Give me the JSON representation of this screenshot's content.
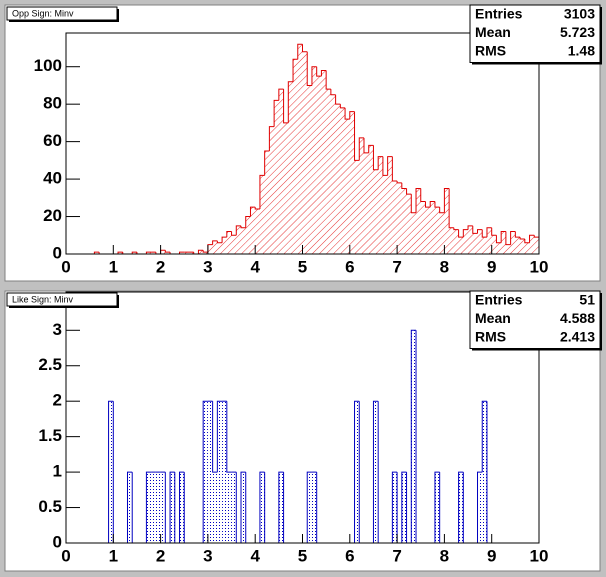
{
  "chart_data": [
    {
      "type": "histogram",
      "title": "Opp Sign: Minv",
      "color": "#e00000",
      "stats": [
        {
          "label": "Entries",
          "value": 3103
        },
        {
          "label": "Mean",
          "value": 5.723
        },
        {
          "label": "RMS",
          "value": 1.48
        }
      ],
      "bins": [
        0,
        0.1,
        0.2,
        0.3,
        0.4,
        0.5,
        0.6,
        0.7,
        0.8,
        0.9,
        1,
        1.1,
        1.2,
        1.3,
        1.4,
        1.5,
        1.6,
        1.7,
        1.8,
        1.9,
        2,
        2.1,
        2.2,
        2.3,
        2.4,
        2.5,
        2.6,
        2.7,
        2.8,
        2.9,
        3,
        3.1,
        3.2,
        3.3,
        3.4,
        3.5,
        3.6,
        3.7,
        3.8,
        3.9,
        4,
        4.1,
        4.2,
        4.3,
        4.4,
        4.5,
        4.6,
        4.7,
        4.8,
        4.9,
        5,
        5.1,
        5.2,
        5.3,
        5.4,
        5.5,
        5.6,
        5.7,
        5.8,
        5.9,
        6,
        6.1,
        6.2,
        6.3,
        6.4,
        6.5,
        6.6,
        6.7,
        6.8,
        6.9,
        7,
        7.1,
        7.2,
        7.3,
        7.4,
        7.5,
        7.6,
        7.7,
        7.8,
        7.9,
        8,
        8.1,
        8.2,
        8.3,
        8.4,
        8.5,
        8.6,
        8.7,
        8.8,
        8.9,
        9,
        9.1,
        9.2,
        9.3,
        9.4,
        9.5,
        9.6,
        9.7,
        9.8,
        9.9,
        10
      ],
      "values": [
        0,
        0,
        0,
        0,
        0,
        0,
        1,
        0,
        0,
        0,
        0,
        1,
        0,
        0,
        1,
        0,
        0,
        1,
        1,
        0,
        2,
        1,
        0,
        0,
        1,
        1,
        1,
        0,
        2,
        1,
        5,
        7,
        6,
        9,
        12,
        10,
        15,
        14,
        20,
        25,
        24,
        42,
        55,
        68,
        82,
        88,
        70,
        92,
        104,
        112,
        108,
        90,
        100,
        95,
        98,
        88,
        85,
        80,
        78,
        72,
        76,
        50,
        62,
        54,
        58,
        45,
        52,
        42,
        52,
        39,
        38,
        35,
        32,
        22,
        35,
        28,
        25,
        28,
        25,
        22,
        35,
        14,
        13,
        9,
        13,
        15,
        11,
        13,
        9,
        14,
        10,
        6,
        12,
        5,
        12,
        9,
        8,
        6,
        10,
        9
      ],
      "xlim": [
        0,
        10
      ],
      "xticks": [
        0,
        1,
        2,
        3,
        4,
        5,
        6,
        7,
        8,
        9,
        10
      ],
      "ylim": [
        0,
        118
      ],
      "yticks": [
        0,
        20,
        40,
        60,
        80,
        100
      ]
    },
    {
      "type": "histogram",
      "title": "Like Sign: Minv",
      "color": "#0000c0",
      "stats": [
        {
          "label": "Entries",
          "value": 51
        },
        {
          "label": "Mean",
          "value": 4.588
        },
        {
          "label": "RMS",
          "value": 2.413
        }
      ],
      "bins": [
        0,
        0.1,
        0.2,
        0.3,
        0.4,
        0.5,
        0.6,
        0.7,
        0.8,
        0.9,
        1,
        1.1,
        1.2,
        1.3,
        1.4,
        1.5,
        1.6,
        1.7,
        1.8,
        1.9,
        2,
        2.1,
        2.2,
        2.3,
        2.4,
        2.5,
        2.6,
        2.7,
        2.8,
        2.9,
        3,
        3.1,
        3.2,
        3.3,
        3.4,
        3.5,
        3.6,
        3.7,
        3.8,
        3.9,
        4,
        4.1,
        4.2,
        4.3,
        4.4,
        4.5,
        4.6,
        4.7,
        4.8,
        4.9,
        5,
        5.1,
        5.2,
        5.3,
        5.4,
        5.5,
        5.6,
        5.7,
        5.8,
        5.9,
        6,
        6.1,
        6.2,
        6.3,
        6.4,
        6.5,
        6.6,
        6.7,
        6.8,
        6.9,
        7,
        7.1,
        7.2,
        7.3,
        7.4,
        7.5,
        7.6,
        7.7,
        7.8,
        7.9,
        8,
        8.1,
        8.2,
        8.3,
        8.4,
        8.5,
        8.6,
        8.7,
        8.8,
        8.9,
        9,
        9.1,
        9.2,
        9.3,
        9.4,
        9.5,
        9.6,
        9.7,
        9.8,
        9.9,
        10
      ],
      "values": [
        0,
        0,
        0,
        0,
        0,
        0,
        0,
        0,
        0,
        2,
        0,
        0,
        0,
        1,
        0,
        0,
        0,
        1,
        1,
        1,
        1,
        0,
        1,
        0,
        1,
        0,
        0,
        0,
        0,
        2,
        2,
        1,
        2,
        2,
        1,
        1,
        0,
        1,
        0,
        0,
        0,
        1,
        0,
        0,
        0,
        1,
        0,
        0,
        0,
        0,
        0,
        1,
        1,
        0,
        0,
        0,
        0,
        0,
        0,
        0,
        0,
        2,
        0,
        0,
        0,
        2,
        0,
        0,
        0,
        1,
        0,
        1,
        0,
        3,
        0,
        0,
        0,
        0,
        1,
        0,
        0,
        0,
        0,
        1,
        0,
        0,
        0,
        1,
        2,
        0,
        0,
        0,
        0,
        0,
        0,
        0,
        0,
        0,
        0,
        0
      ],
      "xlim": [
        0,
        10
      ],
      "xticks": [
        0,
        1,
        2,
        3,
        4,
        5,
        6,
        7,
        8,
        9,
        10
      ],
      "ylim": [
        0,
        3.54
      ],
      "yticks": [
        0,
        0.5,
        1,
        1.5,
        2,
        2.5,
        3
      ]
    }
  ]
}
